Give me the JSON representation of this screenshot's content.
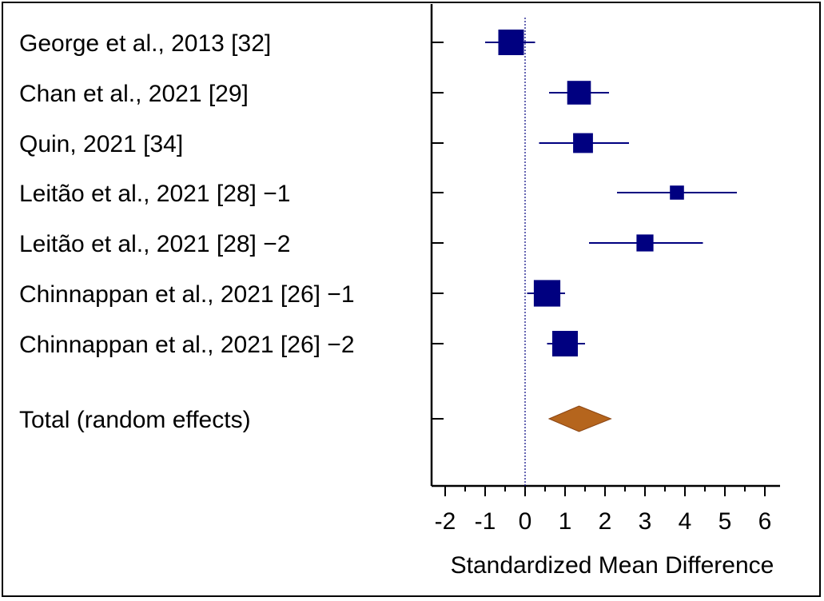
{
  "chart_data": {
    "type": "forest",
    "xlabel": "Standardized Mean Difference",
    "xlim": [
      -2,
      6
    ],
    "x_ticks": [
      "-2",
      "-1",
      "0",
      "1",
      "2",
      "3",
      "4",
      "5",
      "6"
    ],
    "reference_line": 0,
    "colors": {
      "study": "#000080",
      "pooled": "#b5651d"
    },
    "studies": [
      {
        "label": "George et al., 2013 [32]",
        "smd": -0.35,
        "ci_low": -1.0,
        "ci_high": 0.25,
        "weight": 1.0
      },
      {
        "label": "Chan et al., 2021 [29]",
        "smd": 1.35,
        "ci_low": 0.6,
        "ci_high": 2.1,
        "weight": 0.9
      },
      {
        "label": "Quin, 2021 [34]",
        "smd": 1.45,
        "ci_low": 0.35,
        "ci_high": 2.6,
        "weight": 0.7
      },
      {
        "label": "Leitão et al., 2021 [28] −1",
        "smd": 3.8,
        "ci_low": 2.3,
        "ci_high": 5.3,
        "weight": 0.4
      },
      {
        "label": "Leitão et al., 2021 [28] −2",
        "smd": 3.0,
        "ci_low": 1.6,
        "ci_high": 4.45,
        "weight": 0.55
      },
      {
        "label": "Chinnappan et al., 2021 [26] −1",
        "smd": 0.55,
        "ci_low": 0.05,
        "ci_high": 1.0,
        "weight": 1.05
      },
      {
        "label": "Chinnappan et al., 2021 [26] −2",
        "smd": 1.0,
        "ci_low": 0.55,
        "ci_high": 1.5,
        "weight": 1.0
      }
    ],
    "pooled": {
      "label": "Total (random effects)",
      "smd": 1.35,
      "ci_low": 0.6,
      "ci_high": 2.15
    }
  }
}
